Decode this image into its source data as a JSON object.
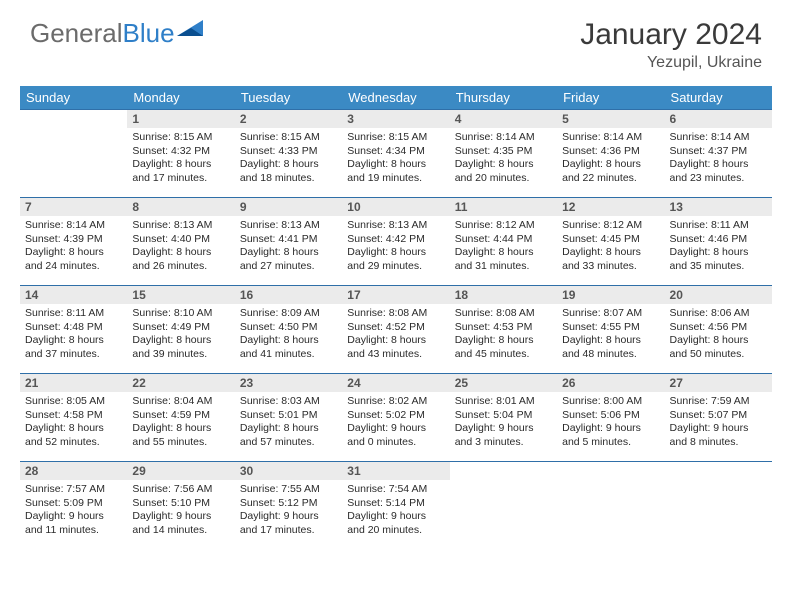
{
  "brand": {
    "part1": "General",
    "part2": "Blue"
  },
  "title": "January 2024",
  "location": "Yezupil, Ukraine",
  "colors": {
    "header_bg": "#3b8ac4",
    "header_text": "#ffffff",
    "cell_border": "#2f6fa8",
    "daynum_bg": "#ebebeb",
    "daynum_text": "#555555",
    "body_text": "#2a2a2a",
    "page_bg": "#ffffff",
    "brand_gray": "#6b6b6b",
    "brand_blue": "#2f7fc8"
  },
  "weekdays": [
    "Sunday",
    "Monday",
    "Tuesday",
    "Wednesday",
    "Thursday",
    "Friday",
    "Saturday"
  ],
  "grid": [
    [
      {
        "empty": true
      },
      {
        "n": "1",
        "sr": "8:15 AM",
        "ss": "4:32 PM",
        "dl": "8 hours and 17 minutes."
      },
      {
        "n": "2",
        "sr": "8:15 AM",
        "ss": "4:33 PM",
        "dl": "8 hours and 18 minutes."
      },
      {
        "n": "3",
        "sr": "8:15 AM",
        "ss": "4:34 PM",
        "dl": "8 hours and 19 minutes."
      },
      {
        "n": "4",
        "sr": "8:14 AM",
        "ss": "4:35 PM",
        "dl": "8 hours and 20 minutes."
      },
      {
        "n": "5",
        "sr": "8:14 AM",
        "ss": "4:36 PM",
        "dl": "8 hours and 22 minutes."
      },
      {
        "n": "6",
        "sr": "8:14 AM",
        "ss": "4:37 PM",
        "dl": "8 hours and 23 minutes."
      }
    ],
    [
      {
        "n": "7",
        "sr": "8:14 AM",
        "ss": "4:39 PM",
        "dl": "8 hours and 24 minutes."
      },
      {
        "n": "8",
        "sr": "8:13 AM",
        "ss": "4:40 PM",
        "dl": "8 hours and 26 minutes."
      },
      {
        "n": "9",
        "sr": "8:13 AM",
        "ss": "4:41 PM",
        "dl": "8 hours and 27 minutes."
      },
      {
        "n": "10",
        "sr": "8:13 AM",
        "ss": "4:42 PM",
        "dl": "8 hours and 29 minutes."
      },
      {
        "n": "11",
        "sr": "8:12 AM",
        "ss": "4:44 PM",
        "dl": "8 hours and 31 minutes."
      },
      {
        "n": "12",
        "sr": "8:12 AM",
        "ss": "4:45 PM",
        "dl": "8 hours and 33 minutes."
      },
      {
        "n": "13",
        "sr": "8:11 AM",
        "ss": "4:46 PM",
        "dl": "8 hours and 35 minutes."
      }
    ],
    [
      {
        "n": "14",
        "sr": "8:11 AM",
        "ss": "4:48 PM",
        "dl": "8 hours and 37 minutes."
      },
      {
        "n": "15",
        "sr": "8:10 AM",
        "ss": "4:49 PM",
        "dl": "8 hours and 39 minutes."
      },
      {
        "n": "16",
        "sr": "8:09 AM",
        "ss": "4:50 PM",
        "dl": "8 hours and 41 minutes."
      },
      {
        "n": "17",
        "sr": "8:08 AM",
        "ss": "4:52 PM",
        "dl": "8 hours and 43 minutes."
      },
      {
        "n": "18",
        "sr": "8:08 AM",
        "ss": "4:53 PM",
        "dl": "8 hours and 45 minutes."
      },
      {
        "n": "19",
        "sr": "8:07 AM",
        "ss": "4:55 PM",
        "dl": "8 hours and 48 minutes."
      },
      {
        "n": "20",
        "sr": "8:06 AM",
        "ss": "4:56 PM",
        "dl": "8 hours and 50 minutes."
      }
    ],
    [
      {
        "n": "21",
        "sr": "8:05 AM",
        "ss": "4:58 PM",
        "dl": "8 hours and 52 minutes."
      },
      {
        "n": "22",
        "sr": "8:04 AM",
        "ss": "4:59 PM",
        "dl": "8 hours and 55 minutes."
      },
      {
        "n": "23",
        "sr": "8:03 AM",
        "ss": "5:01 PM",
        "dl": "8 hours and 57 minutes."
      },
      {
        "n": "24",
        "sr": "8:02 AM",
        "ss": "5:02 PM",
        "dl": "9 hours and 0 minutes."
      },
      {
        "n": "25",
        "sr": "8:01 AM",
        "ss": "5:04 PM",
        "dl": "9 hours and 3 minutes."
      },
      {
        "n": "26",
        "sr": "8:00 AM",
        "ss": "5:06 PM",
        "dl": "9 hours and 5 minutes."
      },
      {
        "n": "27",
        "sr": "7:59 AM",
        "ss": "5:07 PM",
        "dl": "9 hours and 8 minutes."
      }
    ],
    [
      {
        "n": "28",
        "sr": "7:57 AM",
        "ss": "5:09 PM",
        "dl": "9 hours and 11 minutes."
      },
      {
        "n": "29",
        "sr": "7:56 AM",
        "ss": "5:10 PM",
        "dl": "9 hours and 14 minutes."
      },
      {
        "n": "30",
        "sr": "7:55 AM",
        "ss": "5:12 PM",
        "dl": "9 hours and 17 minutes."
      },
      {
        "n": "31",
        "sr": "7:54 AM",
        "ss": "5:14 PM",
        "dl": "9 hours and 20 minutes."
      },
      {
        "empty": true
      },
      {
        "empty": true
      },
      {
        "empty": true
      }
    ]
  ],
  "labels": {
    "sunrise": "Sunrise:",
    "sunset": "Sunset:",
    "daylight": "Daylight:"
  }
}
